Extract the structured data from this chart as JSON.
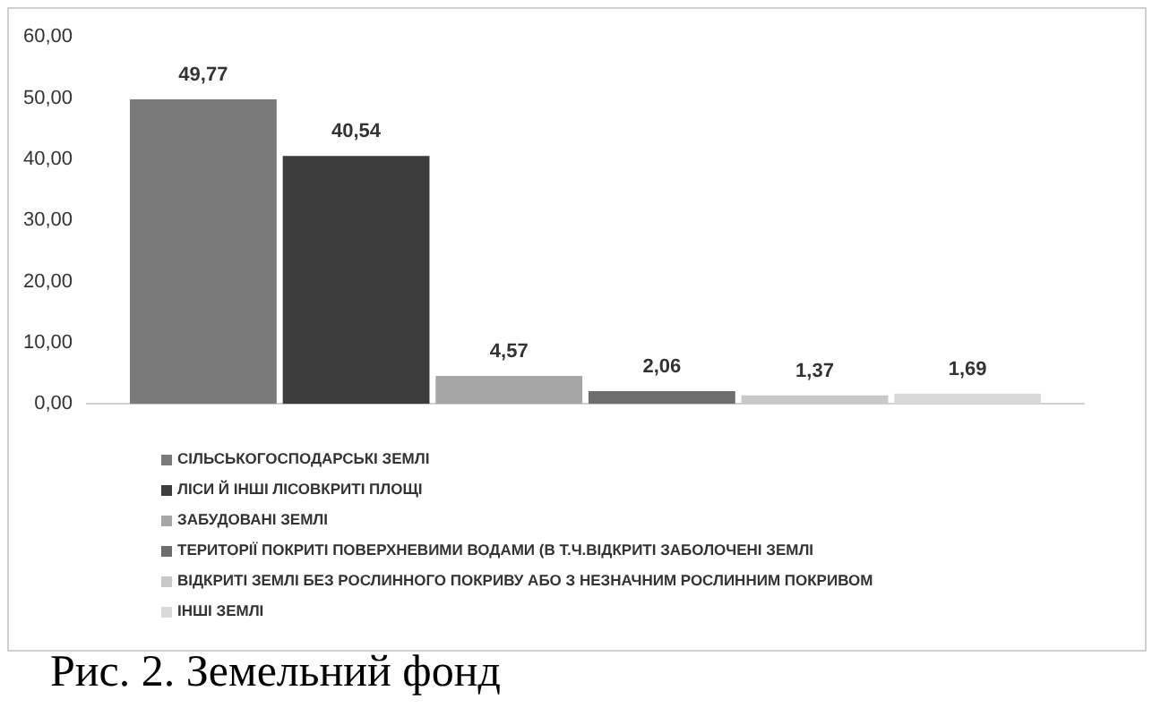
{
  "chart_data": {
    "type": "bar",
    "categories": [
      null
    ],
    "series": [
      {
        "name": "СІЛЬСЬКОГОСПОДАРСЬКІ ЗЕМЛІ",
        "color": "#7a7a7a",
        "values": [
          49.77
        ],
        "value_labels": [
          "49,77"
        ]
      },
      {
        "name": "ЛІСИ Й ІНШІ ЛІСОВКРИТІ ПЛОЩІ",
        "color": "#3c3c3c",
        "values": [
          40.54
        ],
        "value_labels": [
          "40,54"
        ]
      },
      {
        "name": "ЗАБУДОВАНІ ЗЕМЛІ",
        "color": "#a6a6a6",
        "values": [
          4.57
        ],
        "value_labels": [
          "4,57"
        ]
      },
      {
        "name": "ТЕРИТОРІЇ ПОКРИТІ ПОВЕРХНЕВИМИ ВОДАМИ (В Т.Ч.ВІДКРИТІ ЗАБОЛОЧЕНІ ЗЕМЛІ",
        "color": "#6e6e6e",
        "values": [
          2.06
        ],
        "value_labels": [
          "2,06"
        ]
      },
      {
        "name": "ВІДКРИТІ ЗЕМЛІ БЕЗ РОСЛИННОГО ПОКРИВУ АБО З НЕЗНАЧНИМ РОСЛИННИМ ПОКРИВОМ",
        "color": "#c8c8c8",
        "values": [
          1.37
        ],
        "value_labels": [
          "1,37"
        ]
      },
      {
        "name": "ІНШІ ЗЕМЛІ",
        "color": "#d9d9d9",
        "values": [
          1.69
        ],
        "value_labels": [
          "1,69"
        ]
      }
    ],
    "ylim": [
      0,
      60
    ],
    "yticks": [
      {
        "value": 0,
        "label": "0,00"
      },
      {
        "value": 10,
        "label": "10,00"
      },
      {
        "value": 20,
        "label": "20,00"
      },
      {
        "value": 30,
        "label": "30,00"
      },
      {
        "value": 40,
        "label": "40,00"
      },
      {
        "value": 50,
        "label": "50,00"
      },
      {
        "value": 60,
        "label": "60,00"
      }
    ],
    "grid": false,
    "legend": "bottom",
    "annotations": [
      "Рис. 2. Земельний фонд"
    ]
  }
}
